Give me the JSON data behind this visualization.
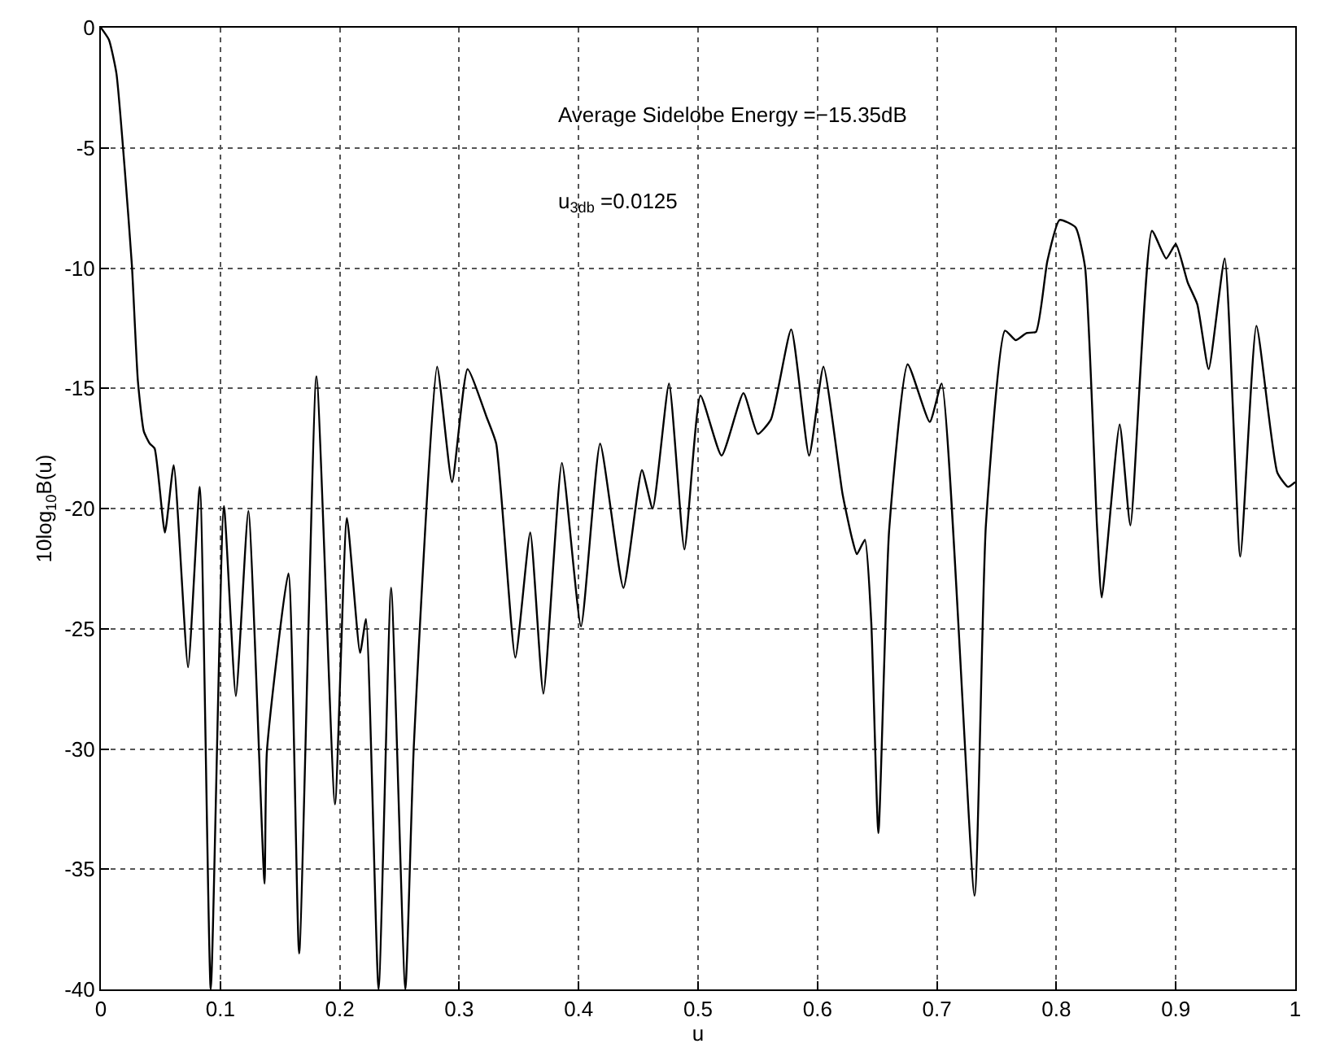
{
  "chart_data": {
    "type": "line",
    "xlabel": "u",
    "ylabel": "10log$_{10}$B(u)",
    "annotations": [
      "Average Sidelobe Energy =−15.35dB",
      "u$_{3db}$ =0.0125"
    ],
    "xlim": [
      0,
      1
    ],
    "xticks": [
      0,
      0.1,
      0.2,
      0.3,
      0.4,
      0.5,
      0.6,
      0.7,
      0.8,
      0.9,
      1
    ],
    "ylim": [
      -40,
      0
    ],
    "yticks": [
      -40,
      -35,
      -30,
      -25,
      -20,
      -15,
      -10,
      -5,
      0
    ],
    "grid": true,
    "marker": "none",
    "line_style": "solid",
    "series": [
      {
        "color": "#000000",
        "x": [
          0,
          0.0067,
          0.013,
          0.02,
          0.026,
          0.031,
          0.036,
          0.041,
          0.045,
          0.0536,
          0.061,
          0.073,
          0.0828,
          0.092,
          0.103,
          0.113,
          0.1235,
          0.137,
          0.139,
          0.157,
          0.166,
          0.1805,
          0.196,
          0.206,
          0.217,
          0.222,
          0.2325,
          0.243,
          0.2549,
          0.262,
          0.2815,
          0.294,
          0.307,
          0.323,
          0.331,
          0.347,
          0.3595,
          0.3705,
          0.386,
          0.402,
          0.418,
          0.4375,
          0.453,
          0.462,
          0.4757,
          0.4886,
          0.502,
          0.5197,
          0.538,
          0.55,
          0.561,
          0.578,
          0.593,
          0.605,
          0.621,
          0.6287,
          0.633,
          0.6397,
          0.645,
          0.651,
          0.66,
          0.6755,
          0.694,
          0.704,
          0.7315,
          0.741,
          0.757,
          0.766,
          0.775,
          0.783,
          0.7925,
          0.8027,
          0.816,
          0.824,
          0.834,
          0.838,
          0.853,
          0.862,
          0.88,
          0.892,
          0.9,
          0.91,
          0.918,
          0.9275,
          0.941,
          0.954,
          0.9675,
          0.985,
          0.994,
          1.0
        ],
        "values": [
          0,
          -0.5,
          -1.9,
          -5.9,
          -9.9,
          -14.7,
          -16.8,
          -17.3,
          -17.5,
          -21.0,
          -18.2,
          -26.6,
          -19.1,
          -40,
          -19.9,
          -27.8,
          -20.1,
          -35.6,
          -30.1,
          -22.7,
          -38.5,
          -14.5,
          -32.3,
          -20.4,
          -26.0,
          -24.6,
          -40,
          -23.3,
          -40,
          -29.9,
          -14.1,
          -18.9,
          -14.2,
          -16.2,
          -17.3,
          -26.2,
          -21.0,
          -27.7,
          -18.1,
          -24.9,
          -17.3,
          -23.3,
          -18.4,
          -20.0,
          -14.8,
          -21.7,
          -15.3,
          -17.8,
          -15.2,
          -16.9,
          -16.3,
          -12.55,
          -17.8,
          -14.1,
          -19.4,
          -21.2,
          -21.9,
          -21.3,
          -24.7,
          -33.5,
          -20.9,
          -14.0,
          -16.4,
          -14.8,
          -36.1,
          -20.7,
          -12.6,
          -13.0,
          -12.7,
          -12.65,
          -9.7,
          -8.0,
          -8.3,
          -9.95,
          -20.7,
          -23.7,
          -16.5,
          -20.7,
          -8.45,
          -9.6,
          -9.0,
          -10.6,
          -11.5,
          -14.2,
          -9.6,
          -22.0,
          -12.4,
          -18.5,
          -19.1,
          -18.9
        ]
      }
    ]
  }
}
